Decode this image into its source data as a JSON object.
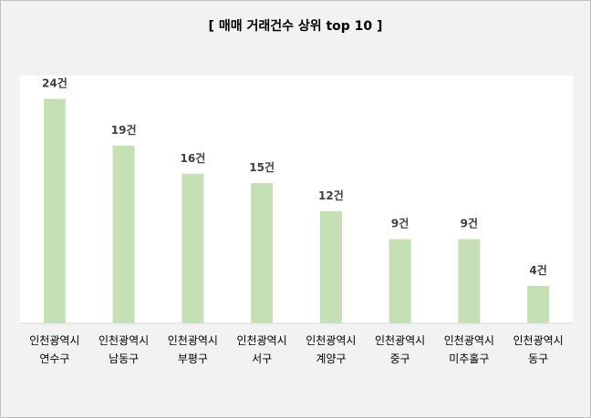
{
  "chart_data": {
    "type": "bar",
    "title": "[ 매매 거래건수 상위 top 10 ]",
    "categories": [
      [
        "인천광역시",
        "연수구"
      ],
      [
        "인천광역시",
        "남동구"
      ],
      [
        "인천광역시",
        "부평구"
      ],
      [
        "인천광역시",
        "서구"
      ],
      [
        "인천광역시",
        "계양구"
      ],
      [
        "인천광역시",
        "중구"
      ],
      [
        "인천광역시",
        "미추홀구"
      ],
      [
        "인천광역시",
        "동구"
      ]
    ],
    "values": [
      24,
      19,
      16,
      15,
      12,
      9,
      9,
      4
    ],
    "value_labels": [
      "24건",
      "19건",
      "16건",
      "15건",
      "12건",
      "9건",
      "9건",
      "4건"
    ],
    "ylim": [
      0,
      26.5
    ],
    "grid": false,
    "colors": {
      "bar": "#c5e0b4",
      "plot_background": "#ffffff",
      "page_background": "#f2f2f2",
      "axis": "#d9d9d9",
      "text": "#000000",
      "data_label": "#404040"
    }
  }
}
